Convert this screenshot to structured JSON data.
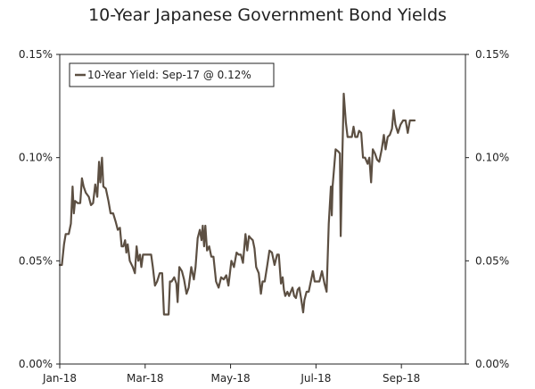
{
  "chart_data": {
    "type": "line",
    "title": "10-Year Japanese Government Bond Yields",
    "xlabel": "",
    "ylabel": "",
    "ylim": [
      0,
      0.15
    ],
    "y_unit": "%",
    "y_ticks": [
      {
        "value": 0.0,
        "label": "0.00%"
      },
      {
        "value": 0.05,
        "label": "0.05%"
      },
      {
        "value": 0.1,
        "label": "0.10%"
      },
      {
        "value": 0.15,
        "label": "0.15%"
      }
    ],
    "x_range": [
      0,
      9.5
    ],
    "x_unit": "months since Jan-2018",
    "x_ticks": [
      {
        "value": 0,
        "label": "Jan-18"
      },
      {
        "value": 2,
        "label": "Mar-18"
      },
      {
        "value": 4,
        "label": "May-18"
      },
      {
        "value": 6,
        "label": "Jul-18"
      },
      {
        "value": 8,
        "label": "Sep-18"
      }
    ],
    "legend": {
      "position": "top-left",
      "label": "10-Year Yield: Sep-17 @ 0.12%"
    },
    "series": [
      {
        "name": "10-Year Yield: Sep-17 @ 0.12%",
        "color": "#5c4f42",
        "points": [
          [
            0.0,
            0.048
          ],
          [
            0.05,
            0.048
          ],
          [
            0.1,
            0.058
          ],
          [
            0.14,
            0.063
          ],
          [
            0.21,
            0.063
          ],
          [
            0.26,
            0.068
          ],
          [
            0.3,
            0.086
          ],
          [
            0.33,
            0.073
          ],
          [
            0.36,
            0.079
          ],
          [
            0.42,
            0.078
          ],
          [
            0.48,
            0.078
          ],
          [
            0.52,
            0.09
          ],
          [
            0.56,
            0.086
          ],
          [
            0.61,
            0.083
          ],
          [
            0.68,
            0.081
          ],
          [
            0.73,
            0.077
          ],
          [
            0.78,
            0.078
          ],
          [
            0.83,
            0.087
          ],
          [
            0.88,
            0.081
          ],
          [
            0.92,
            0.098
          ],
          [
            0.95,
            0.088
          ],
          [
            0.99,
            0.1
          ],
          [
            1.02,
            0.086
          ],
          [
            1.08,
            0.085
          ],
          [
            1.14,
            0.079
          ],
          [
            1.19,
            0.073
          ],
          [
            1.25,
            0.073
          ],
          [
            1.31,
            0.069
          ],
          [
            1.36,
            0.065
          ],
          [
            1.41,
            0.066
          ],
          [
            1.45,
            0.057
          ],
          [
            1.49,
            0.057
          ],
          [
            1.53,
            0.06
          ],
          [
            1.56,
            0.054
          ],
          [
            1.59,
            0.058
          ],
          [
            1.64,
            0.05
          ],
          [
            1.71,
            0.047
          ],
          [
            1.76,
            0.044
          ],
          [
            1.8,
            0.057
          ],
          [
            1.84,
            0.05
          ],
          [
            1.88,
            0.053
          ],
          [
            1.91,
            0.047
          ],
          [
            1.95,
            0.053
          ],
          [
            2.0,
            0.053
          ],
          [
            2.05,
            0.053
          ],
          [
            2.1,
            0.053
          ],
          [
            2.14,
            0.053
          ],
          [
            2.18,
            0.047
          ],
          [
            2.23,
            0.038
          ],
          [
            2.28,
            0.04
          ],
          [
            2.34,
            0.044
          ],
          [
            2.4,
            0.044
          ],
          [
            2.44,
            0.024
          ],
          [
            2.49,
            0.024
          ],
          [
            2.55,
            0.024
          ],
          [
            2.58,
            0.04
          ],
          [
            2.62,
            0.04
          ],
          [
            2.68,
            0.042
          ],
          [
            2.73,
            0.039
          ],
          [
            2.76,
            0.03
          ],
          [
            2.8,
            0.047
          ],
          [
            2.86,
            0.045
          ],
          [
            2.91,
            0.041
          ],
          [
            2.97,
            0.034
          ],
          [
            3.02,
            0.037
          ],
          [
            3.08,
            0.047
          ],
          [
            3.14,
            0.041
          ],
          [
            3.18,
            0.047
          ],
          [
            3.23,
            0.061
          ],
          [
            3.28,
            0.065
          ],
          [
            3.32,
            0.06
          ],
          [
            3.35,
            0.067
          ],
          [
            3.38,
            0.057
          ],
          [
            3.41,
            0.067
          ],
          [
            3.45,
            0.055
          ],
          [
            3.5,
            0.057
          ],
          [
            3.55,
            0.052
          ],
          [
            3.6,
            0.052
          ],
          [
            3.66,
            0.04
          ],
          [
            3.72,
            0.037
          ],
          [
            3.78,
            0.042
          ],
          [
            3.84,
            0.041
          ],
          [
            3.9,
            0.043
          ],
          [
            3.95,
            0.038
          ],
          [
            4.02,
            0.05
          ],
          [
            4.08,
            0.047
          ],
          [
            4.14,
            0.054
          ],
          [
            4.19,
            0.053
          ],
          [
            4.24,
            0.053
          ],
          [
            4.29,
            0.049
          ],
          [
            4.35,
            0.063
          ],
          [
            4.39,
            0.055
          ],
          [
            4.43,
            0.062
          ],
          [
            4.47,
            0.061
          ],
          [
            4.52,
            0.06
          ],
          [
            4.56,
            0.056
          ],
          [
            4.6,
            0.047
          ],
          [
            4.66,
            0.044
          ],
          [
            4.71,
            0.034
          ],
          [
            4.75,
            0.04
          ],
          [
            4.8,
            0.04
          ],
          [
            4.86,
            0.048
          ],
          [
            4.91,
            0.055
          ],
          [
            4.97,
            0.054
          ],
          [
            5.03,
            0.048
          ],
          [
            5.09,
            0.053
          ],
          [
            5.13,
            0.053
          ],
          [
            5.18,
            0.039
          ],
          [
            5.22,
            0.042
          ],
          [
            5.25,
            0.036
          ],
          [
            5.28,
            0.033
          ],
          [
            5.33,
            0.035
          ],
          [
            5.37,
            0.033
          ],
          [
            5.41,
            0.035
          ],
          [
            5.45,
            0.037
          ],
          [
            5.49,
            0.033
          ],
          [
            5.53,
            0.032
          ],
          [
            5.57,
            0.036
          ],
          [
            5.61,
            0.037
          ],
          [
            5.65,
            0.032
          ],
          [
            5.7,
            0.025
          ],
          [
            5.73,
            0.031
          ],
          [
            5.78,
            0.035
          ],
          [
            5.83,
            0.035
          ],
          [
            5.88,
            0.04
          ],
          [
            5.93,
            0.045
          ],
          [
            5.97,
            0.04
          ],
          [
            6.02,
            0.04
          ],
          [
            6.08,
            0.04
          ],
          [
            6.14,
            0.045
          ],
          [
            6.2,
            0.039
          ],
          [
            6.25,
            0.035
          ],
          [
            6.3,
            0.068
          ],
          [
            6.35,
            0.086
          ],
          [
            6.37,
            0.072
          ],
          [
            6.39,
            0.086
          ],
          [
            6.46,
            0.104
          ],
          [
            6.52,
            0.103
          ],
          [
            6.56,
            0.102
          ],
          [
            6.58,
            0.062
          ],
          [
            6.62,
            0.104
          ],
          [
            6.65,
            0.131
          ],
          [
            6.7,
            0.117
          ],
          [
            6.74,
            0.11
          ],
          [
            6.79,
            0.11
          ],
          [
            6.84,
            0.11
          ],
          [
            6.88,
            0.115
          ],
          [
            6.92,
            0.11
          ],
          [
            6.97,
            0.11
          ],
          [
            7.01,
            0.113
          ],
          [
            7.06,
            0.112
          ],
          [
            7.1,
            0.1
          ],
          [
            7.15,
            0.1
          ],
          [
            7.21,
            0.097
          ],
          [
            7.25,
            0.1
          ],
          [
            7.29,
            0.088
          ],
          [
            7.33,
            0.104
          ],
          [
            7.38,
            0.102
          ],
          [
            7.43,
            0.099
          ],
          [
            7.48,
            0.098
          ],
          [
            7.54,
            0.104
          ],
          [
            7.59,
            0.111
          ],
          [
            7.63,
            0.104
          ],
          [
            7.68,
            0.11
          ],
          [
            7.73,
            0.111
          ],
          [
            7.78,
            0.114
          ],
          [
            7.82,
            0.123
          ],
          [
            7.86,
            0.116
          ],
          [
            7.92,
            0.112
          ],
          [
            7.98,
            0.116
          ],
          [
            8.04,
            0.118
          ],
          [
            8.1,
            0.118
          ],
          [
            8.15,
            0.112
          ],
          [
            8.2,
            0.118
          ],
          [
            8.26,
            0.118
          ],
          [
            8.31,
            0.118
          ]
        ]
      }
    ]
  }
}
